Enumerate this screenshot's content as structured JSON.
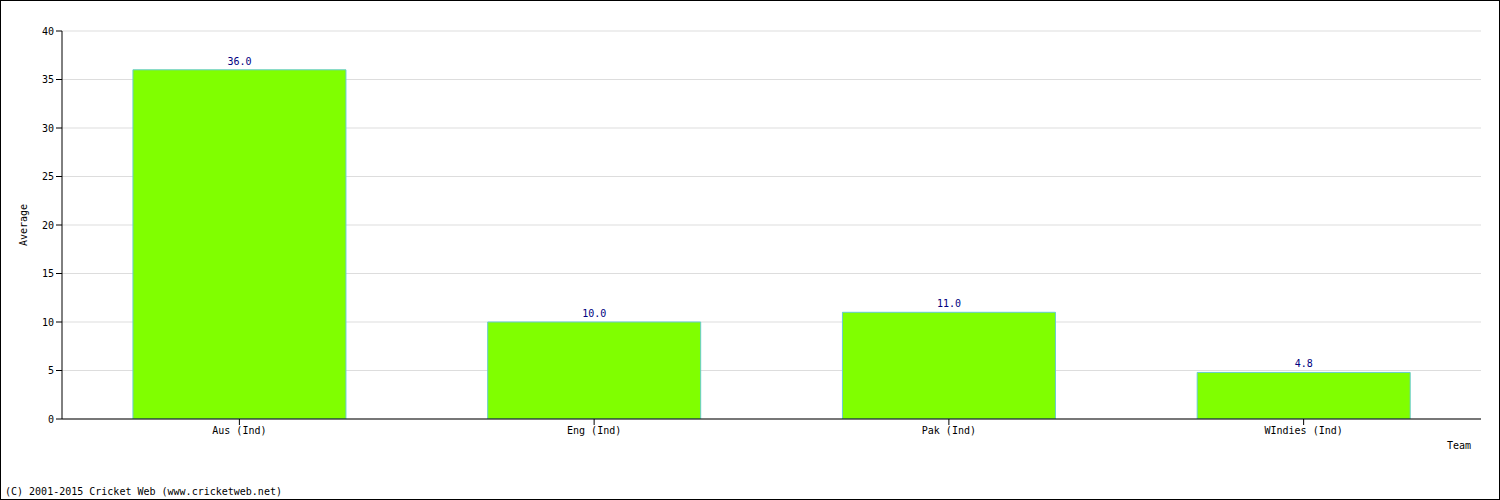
{
  "chart_data": {
    "type": "bar",
    "categories": [
      "Aus (Ind)",
      "Eng (Ind)",
      "Pak (Ind)",
      "WIndies (Ind)"
    ],
    "values": [
      36.0,
      10.0,
      11.0,
      4.8
    ],
    "value_labels": [
      "36.0",
      "10.0",
      "11.0",
      "4.8"
    ],
    "color": "#80ff00",
    "ylim": [
      0,
      40
    ],
    "yticks": [
      0,
      5,
      10,
      15,
      20,
      25,
      30,
      35,
      40
    ],
    "grid": true,
    "data_labels": true,
    "x_label": "Team",
    "y_label": "Average",
    "footer": "(C) 2001-2015 Cricket Web (www.cricketweb.net)"
  }
}
